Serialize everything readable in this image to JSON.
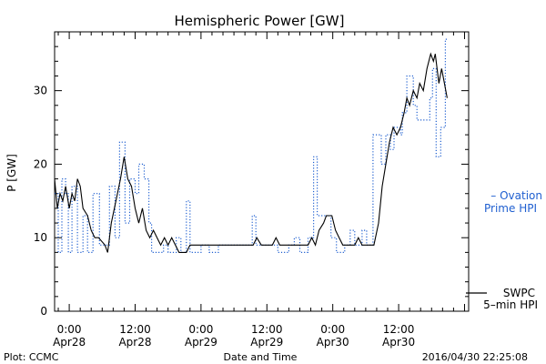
{
  "chart_data": {
    "type": "line",
    "title": "Hemispheric Power [GW]",
    "ylabel": "P [GW]",
    "xlabel": "Date and Time",
    "ylim": [
      0,
      38
    ],
    "yticks": [
      0,
      10,
      20,
      30
    ],
    "xlim": [
      "2016-04-27 21:20",
      "2016-05-01 00:45"
    ],
    "xticks": [
      {
        "time": "2016-04-28 00:00",
        "label": "0:00",
        "sublabel": "Apr28"
      },
      {
        "time": "2016-04-28 12:00",
        "label": "12:00",
        "sublabel": "Apr28"
      },
      {
        "time": "2016-04-29 00:00",
        "label": "0:00",
        "sublabel": "Apr29"
      },
      {
        "time": "2016-04-29 12:00",
        "label": "12:00",
        "sublabel": "Apr29"
      },
      {
        "time": "2016-04-30 00:00",
        "label": "0:00",
        "sublabel": "Apr30"
      },
      {
        "time": "2016-04-30 12:00",
        "label": "12:00",
        "sublabel": "Apr30"
      }
    ],
    "grid": false,
    "legend": "right",
    "series": [
      {
        "name": "Ovation Prime HPI",
        "legend_lines": [
          "– Ovation",
          "Prime HPI"
        ],
        "color": "#1f5fd0",
        "style": "dotted-step",
        "points": [
          [
            "2016-04-27 21:20",
            16
          ],
          [
            "2016-04-27 22:00",
            8
          ],
          [
            "2016-04-27 22:40",
            18
          ],
          [
            "2016-04-27 23:20",
            16
          ],
          [
            "2016-04-27 23:50",
            8
          ],
          [
            "2016-04-28 00:30",
            17
          ],
          [
            "2016-04-28 01:30",
            8
          ],
          [
            "2016-04-28 02:30",
            13
          ],
          [
            "2016-04-28 03:20",
            8
          ],
          [
            "2016-04-28 04:20",
            16
          ],
          [
            "2016-04-28 05:30",
            9
          ],
          [
            "2016-04-28 06:30",
            9
          ],
          [
            "2016-04-28 07:20",
            17
          ],
          [
            "2016-04-28 08:20",
            10
          ],
          [
            "2016-04-28 09:10",
            23
          ],
          [
            "2016-04-28 10:10",
            12
          ],
          [
            "2016-04-28 11:00",
            18
          ],
          [
            "2016-04-28 12:00",
            16
          ],
          [
            "2016-04-28 12:40",
            20
          ],
          [
            "2016-04-28 13:40",
            18
          ],
          [
            "2016-04-28 14:30",
            12
          ],
          [
            "2016-04-28 15:00",
            8
          ],
          [
            "2016-04-28 17:10",
            9
          ],
          [
            "2016-04-28 18:00",
            8
          ],
          [
            "2016-04-28 19:30",
            10
          ],
          [
            "2016-04-28 20:20",
            8
          ],
          [
            "2016-04-28 21:20",
            15
          ],
          [
            "2016-04-28 22:00",
            8
          ],
          [
            "2016-04-29 00:00",
            9
          ],
          [
            "2016-04-29 01:30",
            8
          ],
          [
            "2016-04-29 03:10",
            9
          ],
          [
            "2016-04-29 09:00",
            9
          ],
          [
            "2016-04-29 09:20",
            13
          ],
          [
            "2016-04-29 10:00",
            9
          ],
          [
            "2016-04-29 13:20",
            9
          ],
          [
            "2016-04-29 14:00",
            8
          ],
          [
            "2016-04-29 16:00",
            9
          ],
          [
            "2016-04-29 17:00",
            10
          ],
          [
            "2016-04-29 18:00",
            8
          ],
          [
            "2016-04-29 19:30",
            10
          ],
          [
            "2016-04-29 20:30",
            21
          ],
          [
            "2016-04-29 21:10",
            13
          ],
          [
            "2016-04-29 23:40",
            10
          ],
          [
            "2016-04-30 00:40",
            8
          ],
          [
            "2016-04-30 02:10",
            9
          ],
          [
            "2016-04-30 03:10",
            11
          ],
          [
            "2016-04-30 04:00",
            9
          ],
          [
            "2016-04-30 05:20",
            11
          ],
          [
            "2016-04-30 06:10",
            9
          ],
          [
            "2016-04-30 07:20",
            24
          ],
          [
            "2016-04-30 08:50",
            20
          ],
          [
            "2016-04-30 09:40",
            24
          ],
          [
            "2016-04-30 10:30",
            22
          ],
          [
            "2016-04-30 11:10",
            25
          ],
          [
            "2016-04-30 12:20",
            24
          ],
          [
            "2016-04-30 12:40",
            27
          ],
          [
            "2016-04-30 13:30",
            32
          ],
          [
            "2016-04-30 14:40",
            28
          ],
          [
            "2016-04-30 15:20",
            26
          ],
          [
            "2016-04-30 17:40",
            29
          ],
          [
            "2016-04-30 18:10",
            33
          ],
          [
            "2016-04-30 18:50",
            21
          ],
          [
            "2016-04-30 19:40",
            25
          ],
          [
            "2016-04-30 20:30",
            37
          ],
          [
            "2016-04-30 21:00",
            37
          ]
        ]
      },
      {
        "name": "SWPC 5-min HPI",
        "legend_lines": [
          "SWPC",
          "5–min HPI"
        ],
        "color": "#000000",
        "style": "solid",
        "points": [
          [
            "2016-04-27 21:20",
            18
          ],
          [
            "2016-04-27 21:50",
            14
          ],
          [
            "2016-04-27 22:20",
            16
          ],
          [
            "2016-04-27 22:50",
            15
          ],
          [
            "2016-04-27 23:20",
            17
          ],
          [
            "2016-04-28 00:00",
            14
          ],
          [
            "2016-04-28 00:30",
            16
          ],
          [
            "2016-04-28 01:00",
            15
          ],
          [
            "2016-04-28 01:30",
            18
          ],
          [
            "2016-04-28 02:00",
            17
          ],
          [
            "2016-04-28 02:30",
            14
          ],
          [
            "2016-04-28 03:20",
            13
          ],
          [
            "2016-04-28 04:00",
            11
          ],
          [
            "2016-04-28 04:40",
            10
          ],
          [
            "2016-04-28 05:20",
            10
          ],
          [
            "2016-04-28 06:30",
            9
          ],
          [
            "2016-04-28 07:00",
            8
          ],
          [
            "2016-04-28 07:40",
            12
          ],
          [
            "2016-04-28 08:30",
            15
          ],
          [
            "2016-04-28 09:20",
            18
          ],
          [
            "2016-04-28 10:00",
            21
          ],
          [
            "2016-04-28 10:40",
            18
          ],
          [
            "2016-04-28 11:20",
            17
          ],
          [
            "2016-04-28 12:00",
            14
          ],
          [
            "2016-04-28 12:40",
            12
          ],
          [
            "2016-04-28 13:20",
            14
          ],
          [
            "2016-04-28 14:00",
            11
          ],
          [
            "2016-04-28 14:40",
            10
          ],
          [
            "2016-04-28 15:20",
            11
          ],
          [
            "2016-04-28 16:00",
            10
          ],
          [
            "2016-04-28 16:40",
            9
          ],
          [
            "2016-04-28 17:20",
            10
          ],
          [
            "2016-04-28 18:00",
            9
          ],
          [
            "2016-04-28 18:40",
            10
          ],
          [
            "2016-04-28 19:20",
            9
          ],
          [
            "2016-04-28 20:00",
            8
          ],
          [
            "2016-04-28 21:20",
            8
          ],
          [
            "2016-04-28 22:00",
            9
          ],
          [
            "2016-04-29 09:30",
            9
          ],
          [
            "2016-04-29 10:10",
            10
          ],
          [
            "2016-04-29 11:00",
            9
          ],
          [
            "2016-04-29 13:00",
            9
          ],
          [
            "2016-04-29 13:40",
            10
          ],
          [
            "2016-04-29 14:20",
            9
          ],
          [
            "2016-04-29 19:30",
            9
          ],
          [
            "2016-04-29 20:10",
            10
          ],
          [
            "2016-04-29 20:50",
            9
          ],
          [
            "2016-04-29 21:30",
            11
          ],
          [
            "2016-04-29 22:20",
            12
          ],
          [
            "2016-04-29 22:50",
            13
          ],
          [
            "2016-04-29 23:50",
            13
          ],
          [
            "2016-04-30 00:30",
            11
          ],
          [
            "2016-04-30 01:10",
            10
          ],
          [
            "2016-04-30 01:50",
            9
          ],
          [
            "2016-04-30 04:00",
            9
          ],
          [
            "2016-04-30 04:40",
            10
          ],
          [
            "2016-04-30 05:20",
            9
          ],
          [
            "2016-04-30 07:30",
            9
          ],
          [
            "2016-04-30 08:20",
            12
          ],
          [
            "2016-04-30 09:00",
            17
          ],
          [
            "2016-04-30 09:40",
            20
          ],
          [
            "2016-04-30 10:20",
            23
          ],
          [
            "2016-04-30 11:00",
            25
          ],
          [
            "2016-04-30 11:40",
            24
          ],
          [
            "2016-04-30 12:20",
            25
          ],
          [
            "2016-04-30 13:00",
            27
          ],
          [
            "2016-04-30 13:30",
            29
          ],
          [
            "2016-04-30 14:00",
            28
          ],
          [
            "2016-04-30 14:40",
            30
          ],
          [
            "2016-04-30 15:20",
            29
          ],
          [
            "2016-04-30 15:50",
            31
          ],
          [
            "2016-04-30 16:30",
            30
          ],
          [
            "2016-04-30 17:10",
            33
          ],
          [
            "2016-04-30 17:50",
            35
          ],
          [
            "2016-04-30 18:20",
            34
          ],
          [
            "2016-04-30 18:40",
            35
          ],
          [
            "2016-04-30 19:20",
            31
          ],
          [
            "2016-04-30 19:50",
            33
          ],
          [
            "2016-04-30 20:20",
            31
          ],
          [
            "2016-04-30 20:50",
            29
          ]
        ]
      }
    ]
  },
  "footer": {
    "left": "Plot: CCMC",
    "right": "2016/04/30 22:25:08"
  }
}
